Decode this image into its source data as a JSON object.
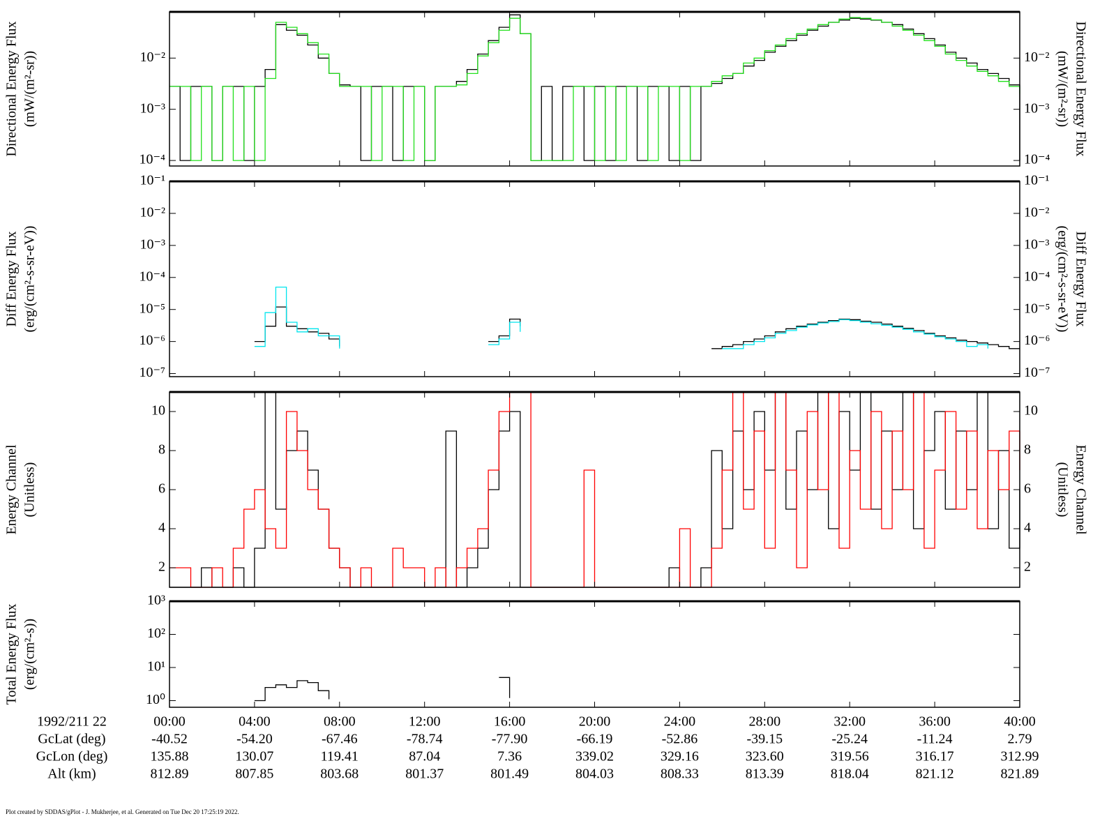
{
  "chart_data": [
    {
      "type": "line",
      "step": true,
      "yscale": "log",
      "right_axis": true,
      "ylabel": "Directional Energy Flux",
      "yunit": "(mW/(m²-sr))",
      "xlim": [
        0,
        40
      ],
      "xticks": [
        0,
        4,
        8,
        12,
        16,
        20,
        24,
        28,
        32,
        36,
        40
      ],
      "ylim": [
        7.8e-05,
        0.08
      ],
      "yticks": [
        {
          "value": 0.0001,
          "label": "10⁻⁴"
        },
        {
          "value": 0.001,
          "label": "10⁻³"
        },
        {
          "value": 0.01,
          "label": "10⁻²"
        }
      ],
      "x": [
        0,
        0.5,
        1,
        1.5,
        2,
        2.5,
        3,
        3.5,
        4,
        4.5,
        5,
        5.5,
        6,
        6.5,
        7,
        7.5,
        8,
        8.5,
        9,
        9.5,
        10,
        10.5,
        11,
        11.5,
        12,
        12.5,
        13,
        13.5,
        14,
        14.5,
        15,
        15.5,
        16,
        16.5,
        17,
        17.5,
        18,
        18.5,
        19,
        19.5,
        20,
        20.5,
        21,
        21.5,
        22,
        22.5,
        23,
        23.5,
        24,
        24.5,
        25,
        25.5,
        26,
        26.5,
        27,
        27.5,
        28,
        28.5,
        29,
        29.5,
        30,
        30.5,
        31,
        31.5,
        32,
        32.5,
        33,
        33.5,
        34,
        34.5,
        35,
        35.5,
        36,
        36.5,
        37,
        37.5,
        38,
        38.5,
        39,
        39.5,
        40
      ],
      "series": [
        {
          "color": "#000000",
          "values": [
            0.0028,
            0.0001,
            0.0028,
            0.0028,
            0.0001,
            0.0028,
            0.0028,
            0.0001,
            0.0028,
            0.006,
            0.045,
            0.035,
            0.028,
            0.018,
            0.01,
            0.005,
            0.003,
            0.0028,
            0.0001,
            0.0028,
            0.0028,
            0.0001,
            0.0028,
            0.0028,
            0.0001,
            0.0028,
            0.0028,
            0.0035,
            0.006,
            0.012,
            0.022,
            0.04,
            0.07,
            0.03,
            0.0001,
            0.0028,
            0.0001,
            0.0028,
            0.0028,
            0.0001,
            0.0028,
            0.0001,
            0.0028,
            0.0028,
            0.0001,
            0.0028,
            0.0028,
            0.0001,
            0.0028,
            0.0001,
            0.0028,
            0.0032,
            0.004,
            0.005,
            0.007,
            0.009,
            0.013,
            0.017,
            0.022,
            0.028,
            0.035,
            0.042,
            0.05,
            0.055,
            0.06,
            0.058,
            0.055,
            0.05,
            0.045,
            0.037,
            0.03,
            0.024,
            0.018,
            0.013,
            0.01,
            0.008,
            0.006,
            0.005,
            0.004,
            0.003,
            0.0001
          ]
        },
        {
          "color": "#22e01c",
          "values": [
            0.0028,
            0.0028,
            0.0001,
            0.0028,
            0.0001,
            0.0028,
            0.0001,
            0.0028,
            0.0001,
            0.004,
            0.05,
            0.04,
            0.03,
            0.02,
            0.012,
            0.005,
            0.0028,
            0.0028,
            0.0028,
            0.0001,
            0.0028,
            0.0028,
            0.0001,
            0.0028,
            0.0001,
            0.0028,
            0.0028,
            0.003,
            0.005,
            0.011,
            0.02,
            0.035,
            0.06,
            0.03,
            0.0001,
            0.0001,
            0.0001,
            0.0001,
            0.0028,
            0.0028,
            0.0001,
            0.0028,
            0.0001,
            0.0028,
            0.0028,
            0.0001,
            0.0028,
            0.0028,
            0.0001,
            0.0028,
            0.0028,
            0.0035,
            0.0045,
            0.005,
            0.008,
            0.01,
            0.014,
            0.018,
            0.024,
            0.03,
            0.037,
            0.045,
            0.05,
            0.058,
            0.062,
            0.06,
            0.056,
            0.05,
            0.042,
            0.035,
            0.028,
            0.022,
            0.017,
            0.012,
            0.009,
            0.007,
            0.0055,
            0.0045,
            0.0035,
            0.0028,
            0.002
          ]
        }
      ]
    },
    {
      "type": "line",
      "step": true,
      "yscale": "log",
      "right_axis": true,
      "ylabel": "Diff Energy Flux",
      "yunit": "(erg/(cm²-s-sr-eV))",
      "xlim": [
        0,
        40
      ],
      "xticks": [
        0,
        4,
        8,
        12,
        16,
        20,
        24,
        28,
        32,
        36,
        40
      ],
      "ylim": [
        8e-08,
        0.1
      ],
      "yticks": [
        {
          "value": 1e-07,
          "label": "10⁻⁷"
        },
        {
          "value": 1e-06,
          "label": "10⁻⁶"
        },
        {
          "value": 1e-05,
          "label": "10⁻⁵"
        },
        {
          "value": 0.0001,
          "label": "10⁻⁴"
        },
        {
          "value": 0.001,
          "label": "10⁻³"
        },
        {
          "value": 0.01,
          "label": "10⁻²"
        },
        {
          "value": 0.1,
          "label": "10⁻¹"
        }
      ],
      "x": [
        0,
        0.5,
        1,
        1.5,
        2,
        2.5,
        3,
        3.5,
        4,
        4.5,
        5,
        5.5,
        6,
        6.5,
        7,
        7.5,
        8,
        8.5,
        9,
        9.5,
        10,
        10.5,
        11,
        11.5,
        12,
        12.5,
        13,
        13.5,
        14,
        14.5,
        15,
        15.5,
        16,
        16.5,
        17,
        17.5,
        18,
        18.5,
        19,
        19.5,
        20,
        20.5,
        21,
        21.5,
        22,
        22.5,
        23,
        23.5,
        24,
        24.5,
        25,
        25.5,
        26,
        26.5,
        27,
        27.5,
        28,
        28.5,
        29,
        29.5,
        30,
        30.5,
        31,
        31.5,
        32,
        32.5,
        33,
        33.5,
        34,
        34.5,
        35,
        35.5,
        36,
        36.5,
        37,
        37.5,
        38,
        38.5,
        39,
        39.5,
        40
      ],
      "series": [
        {
          "color": "#000000",
          "values": [
            null,
            null,
            null,
            null,
            null,
            null,
            null,
            null,
            1e-06,
            3e-06,
            1.2e-05,
            3e-06,
            2.5e-06,
            2e-06,
            1.8e-06,
            1.2e-06,
            7e-07,
            null,
            null,
            null,
            null,
            null,
            null,
            null,
            null,
            null,
            null,
            null,
            null,
            null,
            1e-06,
            1.5e-06,
            5e-06,
            3e-06,
            null,
            null,
            null,
            null,
            null,
            null,
            null,
            null,
            null,
            null,
            null,
            null,
            null,
            null,
            null,
            null,
            null,
            6e-07,
            7e-07,
            8e-07,
            1e-06,
            1.2e-06,
            1.5e-06,
            2e-06,
            2.5e-06,
            3e-06,
            3.5e-06,
            4e-06,
            4.5e-06,
            5e-06,
            4.8e-06,
            4.3e-06,
            4e-06,
            3.5e-06,
            3e-06,
            2.6e-06,
            2.2e-06,
            1.8e-06,
            1.5e-06,
            1.3e-06,
            1.1e-06,
            1e-06,
            9e-07,
            8e-07,
            7e-07,
            6e-07,
            6e-07
          ]
        },
        {
          "color": "#00e5ee",
          "values": [
            null,
            null,
            null,
            null,
            null,
            null,
            null,
            null,
            7e-07,
            8e-06,
            5e-05,
            4e-06,
            2e-06,
            2.5e-06,
            1.5e-06,
            1.5e-06,
            6e-07,
            null,
            null,
            null,
            null,
            null,
            null,
            null,
            null,
            null,
            null,
            null,
            null,
            null,
            8e-07,
            1.2e-06,
            4e-06,
            2e-06,
            null,
            null,
            null,
            null,
            null,
            null,
            null,
            null,
            null,
            null,
            null,
            null,
            null,
            null,
            null,
            null,
            null,
            null,
            6e-07,
            6e-07,
            8e-07,
            1e-06,
            1.3e-06,
            1.8e-06,
            2.2e-06,
            2.8e-06,
            3.3e-06,
            3.8e-06,
            4.2e-06,
            4.8e-06,
            4.5e-06,
            4e-06,
            3.6e-06,
            3.2e-06,
            2.8e-06,
            2.4e-06,
            2e-06,
            1.7e-06,
            1.4e-06,
            1.2e-06,
            1e-06,
            7e-07,
            8e-07,
            6e-07,
            null,
            null,
            null
          ]
        }
      ]
    },
    {
      "type": "line",
      "step": true,
      "yscale": "linear",
      "right_axis": true,
      "ylabel": "Energy Channel",
      "yunit": "(Unitless)",
      "xlim": [
        0,
        40
      ],
      "xticks": [
        0,
        4,
        8,
        12,
        16,
        20,
        24,
        28,
        32,
        36,
        40
      ],
      "ylim": [
        1,
        11
      ],
      "yticks": [
        2,
        4,
        6,
        8,
        10
      ],
      "x": [
        0,
        0.5,
        1,
        1.5,
        2,
        2.5,
        3,
        3.5,
        4,
        4.5,
        5,
        5.5,
        6,
        6.5,
        7,
        7.5,
        8,
        8.5,
        9,
        9.5,
        10,
        10.5,
        11,
        11.5,
        12,
        12.5,
        13,
        13.5,
        14,
        14.5,
        15,
        15.5,
        16,
        16.5,
        17,
        17.5,
        18,
        18.5,
        19,
        19.5,
        20,
        20.5,
        21,
        21.5,
        22,
        22.5,
        23,
        23.5,
        24,
        24.5,
        25,
        25.5,
        26,
        26.5,
        27,
        27.5,
        28,
        28.5,
        29,
        29.5,
        30,
        30.5,
        31,
        31.5,
        32,
        32.5,
        33,
        33.5,
        34,
        34.5,
        35,
        35.5,
        36,
        36.5,
        37,
        37.5,
        38,
        38.5,
        39,
        39.5,
        40
      ],
      "series": [
        {
          "color": "#000000",
          "values": [
            1,
            1,
            1,
            2,
            1,
            1,
            2,
            1,
            3,
            11,
            5,
            8,
            9,
            7,
            5,
            3,
            2,
            1,
            1,
            1,
            1,
            1,
            1,
            1,
            1,
            1,
            9,
            1,
            2,
            3,
            6,
            9,
            10,
            1,
            1,
            1,
            1,
            1,
            1,
            1,
            1,
            1,
            1,
            1,
            1,
            1,
            1,
            2,
            1,
            1,
            2,
            8,
            4,
            9,
            6,
            10,
            7,
            11,
            5,
            9,
            6,
            11,
            4,
            10,
            7,
            11,
            5,
            9,
            6,
            11,
            4,
            8,
            10,
            5,
            9,
            6,
            11,
            4,
            8,
            3,
            6
          ]
        },
        {
          "color": "#ff0000",
          "values": [
            2,
            2,
            1,
            1,
            2,
            1,
            3,
            5,
            6,
            4,
            3,
            10,
            8,
            6,
            5,
            3,
            2,
            1,
            2,
            1,
            1,
            3,
            2,
            2,
            1,
            2,
            1,
            2,
            3,
            4,
            7,
            10,
            11,
            11,
            1,
            1,
            1,
            1,
            1,
            7,
            1,
            1,
            1,
            1,
            1,
            1,
            1,
            1,
            4,
            1,
            1,
            3,
            7,
            11,
            5,
            9,
            3,
            11,
            7,
            2,
            10,
            6,
            11,
            3,
            8,
            5,
            10,
            4,
            9,
            6,
            11,
            3,
            7,
            10,
            5,
            9,
            4,
            8,
            6,
            9,
            7
          ]
        }
      ]
    },
    {
      "type": "line",
      "step": true,
      "yscale": "log",
      "right_axis": false,
      "ylabel": "Total Energy Flux",
      "yunit": "(erg/(cm²-s))",
      "xlim": [
        0,
        40
      ],
      "xticks": [
        {
          "value": 0,
          "label": "00:00"
        },
        {
          "value": 4,
          "label": "04:00"
        },
        {
          "value": 8,
          "label": "08:00"
        },
        {
          "value": 12,
          "label": "12:00"
        },
        {
          "value": 16,
          "label": "16:00"
        },
        {
          "value": 20,
          "label": "20:00"
        },
        {
          "value": 24,
          "label": "24:00"
        },
        {
          "value": 28,
          "label": "28:00"
        },
        {
          "value": 32,
          "label": "32:00"
        },
        {
          "value": 36,
          "label": "36:00"
        },
        {
          "value": 40,
          "label": "40:00"
        }
      ],
      "ylim": [
        0.63,
        1000
      ],
      "yticks": [
        {
          "value": 1,
          "label": "10⁰"
        },
        {
          "value": 10,
          "label": "10¹"
        },
        {
          "value": 100,
          "label": "10²"
        },
        {
          "value": 1000,
          "label": "10³"
        }
      ],
      "x": [
        0,
        0.5,
        1,
        1.5,
        2,
        2.5,
        3,
        3.5,
        4,
        4.5,
        5,
        5.5,
        6,
        6.5,
        7,
        7.5,
        8,
        8.5,
        9,
        9.5,
        10,
        10.5,
        11,
        11.5,
        12,
        12.5,
        13,
        13.5,
        14,
        14.5,
        15,
        15.5,
        16,
        16.5,
        17,
        17.5,
        18,
        18.5,
        19,
        19.5,
        20,
        20.5,
        21,
        21.5,
        22,
        22.5,
        23,
        23.5,
        24,
        24.5,
        25,
        25.5,
        26,
        26.5,
        27,
        27.5,
        28,
        28.5,
        29,
        29.5,
        30,
        30.5,
        31,
        31.5,
        32,
        32.5,
        33,
        33.5,
        34,
        34.5,
        35,
        35.5,
        36,
        36.5,
        37,
        37.5,
        38,
        38.5,
        39,
        39.5,
        40
      ],
      "series": [
        {
          "color": "#000000",
          "values": [
            null,
            null,
            null,
            null,
            null,
            null,
            null,
            null,
            1,
            2.5,
            3,
            2.5,
            4,
            3.5,
            2,
            1.1,
            null,
            null,
            null,
            null,
            null,
            null,
            null,
            null,
            null,
            null,
            null,
            null,
            null,
            null,
            null,
            5,
            1.2,
            null,
            null,
            null,
            null,
            null,
            null,
            null,
            null,
            null,
            null,
            null,
            null,
            null,
            null,
            null,
            null,
            null,
            null,
            null,
            null,
            null,
            null,
            null,
            null,
            null,
            null,
            null,
            null,
            null,
            null,
            null,
            null,
            null,
            null,
            null,
            null,
            null,
            null,
            null,
            null,
            null,
            null,
            null,
            null,
            null,
            null,
            null,
            null
          ]
        }
      ]
    }
  ],
  "ephemeris": {
    "time_label": "1992/211 22",
    "rows": [
      {
        "label": "GcLat (deg)",
        "values": [
          "-40.52",
          "-54.20",
          "-67.46",
          "-78.74",
          "-77.90",
          "-66.19",
          "-52.86",
          "-39.15",
          "-25.24",
          "-11.24",
          "2.79"
        ]
      },
      {
        "label": "GcLon (deg)",
        "values": [
          "135.88",
          "130.07",
          "119.41",
          "87.04",
          "7.36",
          "339.02",
          "329.16",
          "323.60",
          "319.56",
          "316.17",
          "312.99"
        ]
      },
      {
        "label": "Alt (km)",
        "values": [
          "812.89",
          "807.85",
          "803.68",
          "801.37",
          "801.49",
          "804.03",
          "808.33",
          "813.39",
          "818.04",
          "821.12",
          "821.89"
        ]
      }
    ]
  },
  "footer": "Plot created by SDDAS/gPlot - J. Mukherjee, et al.  Generated on Tue Dec 20 17:25:19 2022."
}
